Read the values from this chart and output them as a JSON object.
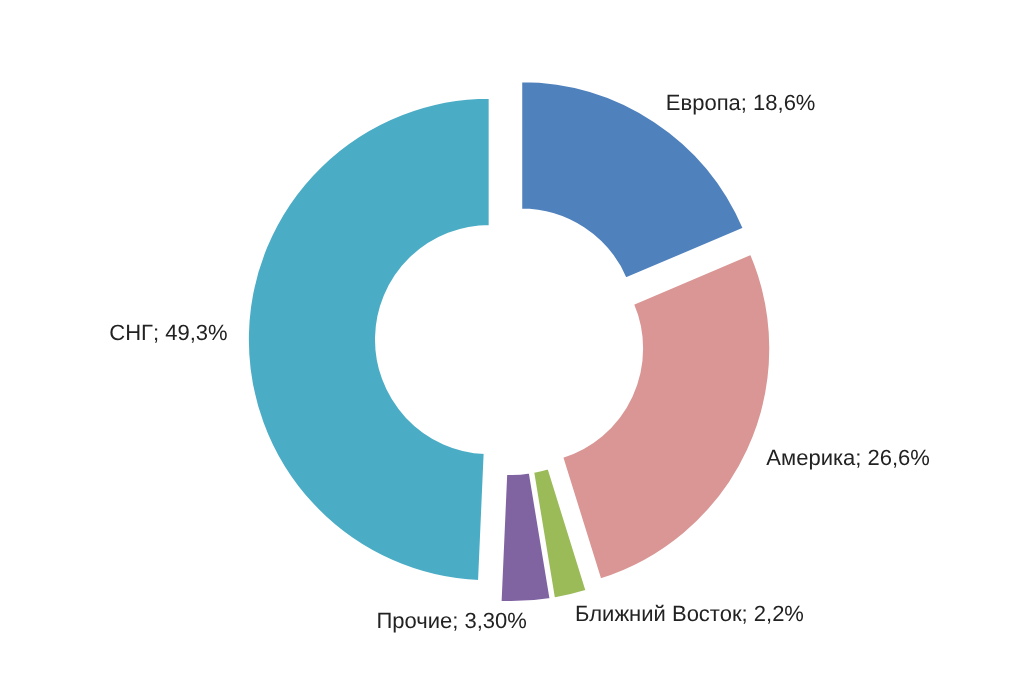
{
  "chart_data": {
    "type": "donut",
    "categories": [
      "Европа",
      "Америка",
      "Ближний Восток",
      "Прочие",
      "СНГ"
    ],
    "values": [
      18.6,
      26.6,
      2.2,
      3.3,
      49.3
    ],
    "colors": [
      "#4f81bd",
      "#d99694",
      "#9bbb59",
      "#8064a2",
      "#4bacc6"
    ],
    "value_labels": [
      "18,6%",
      "26,6%",
      "2,2%",
      "3,30%",
      "49,3%"
    ]
  }
}
